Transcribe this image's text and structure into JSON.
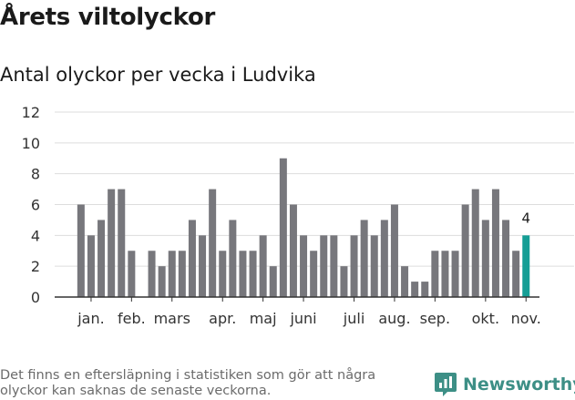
{
  "title": "Årets viltolyckor",
  "subtitle": "Antal olyckor per vecka i Ludvika",
  "footnote": "Det finns en eftersläpning i statistiken som gör att några olyckor kan saknas de senaste veckorna.",
  "brand": {
    "name": "Newsworthy",
    "icon": "newsworthy-logo-icon",
    "color": "#3d8f86"
  },
  "colors": {
    "bar": "#77777c",
    "highlight": "#159e95",
    "grid": "#dddddd",
    "axis": "#333333"
  },
  "chart_data": {
    "type": "bar",
    "title": "Antal olyckor per vecka i Ludvika",
    "xlabel": "",
    "ylabel": "",
    "ylim": [
      0,
      12
    ],
    "yticks": [
      0,
      2,
      4,
      6,
      8,
      10,
      12
    ],
    "grid": true,
    "values": [
      6,
      4,
      5,
      7,
      7,
      3,
      0,
      3,
      2,
      3,
      3,
      5,
      4,
      7,
      3,
      5,
      3,
      3,
      4,
      2,
      9,
      6,
      4,
      3,
      4,
      4,
      2,
      4,
      5,
      4,
      5,
      6,
      2,
      1,
      1,
      3,
      3,
      3,
      6,
      7,
      5,
      7,
      5,
      3,
      4
    ],
    "highlight_index": 44,
    "highlight_label": "4",
    "month_labels": [
      {
        "label": "jan.",
        "week": 1
      },
      {
        "label": "feb.",
        "week": 5
      },
      {
        "label": "mars",
        "week": 9
      },
      {
        "label": "apr.",
        "week": 14
      },
      {
        "label": "maj",
        "week": 18
      },
      {
        "label": "juni",
        "week": 22
      },
      {
        "label": "juli",
        "week": 27
      },
      {
        "label": "aug.",
        "week": 31
      },
      {
        "label": "sep.",
        "week": 35
      },
      {
        "label": "okt.",
        "week": 40
      },
      {
        "label": "nov.",
        "week": 44
      }
    ]
  }
}
